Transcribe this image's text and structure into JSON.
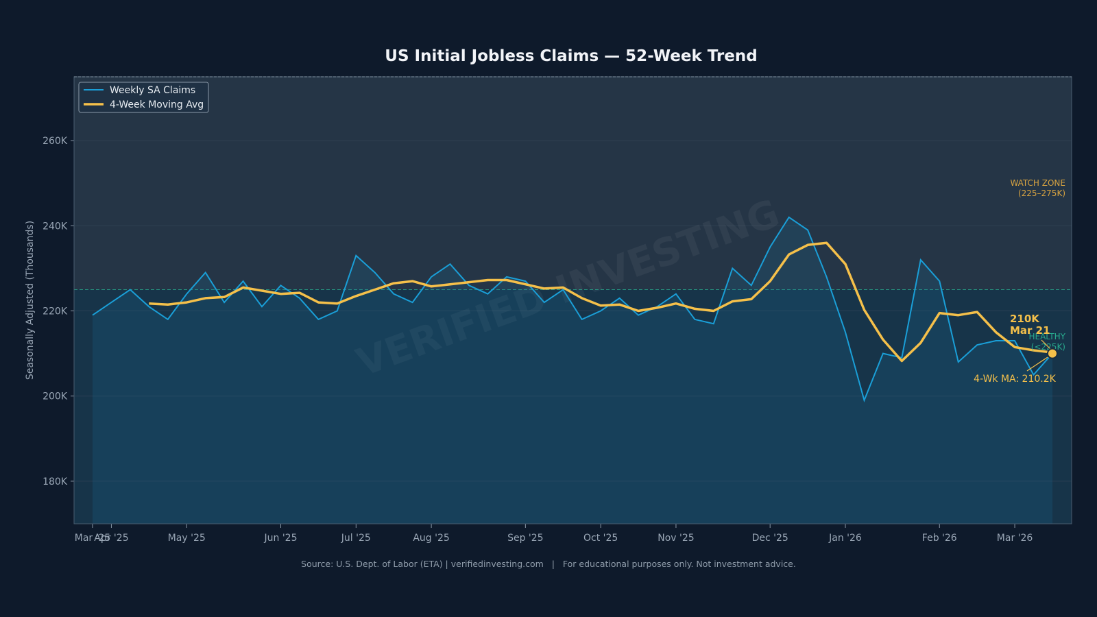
{
  "chart_data": {
    "type": "line",
    "title": "US Initial Jobless Claims — 52-Week Trend",
    "ylabel": "Seasonally Adjusted (Thousands)",
    "xlabel": "",
    "ylim": [
      170,
      275
    ],
    "y_ticks": [
      180,
      200,
      220,
      240,
      260
    ],
    "y_tick_labels": [
      "180K",
      "200K",
      "220K",
      "240K",
      "260K"
    ],
    "x_tick_labels": [
      "Mar '25",
      "Apr '25",
      "May '25",
      "Jun '25",
      "Jul '25",
      "Aug '25",
      "Sep '25",
      "Oct '25",
      "Nov '25",
      "Dec '25",
      "Jan '26",
      "Feb '26",
      "Mar '26"
    ],
    "x_tick_week_index": [
      0,
      1,
      5,
      10,
      14,
      18,
      23,
      27,
      31,
      36,
      40,
      45,
      49
    ],
    "watch_threshold": 225,
    "grid": true,
    "legend_position": "top-left",
    "series": [
      {
        "name": "Weekly SA Claims",
        "color": "#1a9fd8",
        "values": [
          219,
          222,
          225,
          221,
          218,
          224,
          229,
          222,
          227,
          221,
          226,
          223,
          218,
          220,
          233,
          229,
          224,
          222,
          228,
          231,
          226,
          224,
          228,
          227,
          222,
          225,
          218,
          220,
          223,
          219,
          221,
          224,
          218,
          217,
          230,
          226,
          235,
          242,
          239,
          228,
          215,
          199,
          210,
          209,
          232,
          227,
          208,
          212,
          213,
          213,
          205,
          210
        ]
      },
      {
        "name": "4-Week Moving Avg",
        "color": "#f5c04a",
        "values": [
          null,
          null,
          null,
          221.75,
          221.5,
          222,
          223,
          223.25,
          225.5,
          224.75,
          224,
          224.25,
          222,
          221.75,
          223.5,
          225,
          226.5,
          227,
          225.75,
          226.25,
          226.75,
          227.25,
          227.25,
          226.25,
          225.25,
          225.5,
          223,
          221.25,
          221.5,
          220,
          220.75,
          221.75,
          220.5,
          220,
          222.25,
          222.75,
          227,
          233.25,
          235.5,
          236,
          231,
          220.25,
          213.25,
          208.25,
          212.5,
          219.5,
          219,
          219.75,
          215,
          211.5,
          210.75,
          210.25
        ]
      }
    ],
    "zones": [
      {
        "label": "WATCH ZONE",
        "sub": "(225–275K)",
        "color": "#d9a441"
      },
      {
        "label": "HEALTHY",
        "sub": "(<225K)",
        "color": "#2bbf9a"
      }
    ],
    "annotations": {
      "latest_value": "210K",
      "latest_date": "Mar 21",
      "ma_label": "4-Wk MA: 210.2K"
    },
    "watermark": "VERIFIED INVESTING",
    "source": "Source: U.S. Dept. of Labor (ETA) | verifiedinvesting.com   |   For educational purposes only. Not investment advice."
  }
}
